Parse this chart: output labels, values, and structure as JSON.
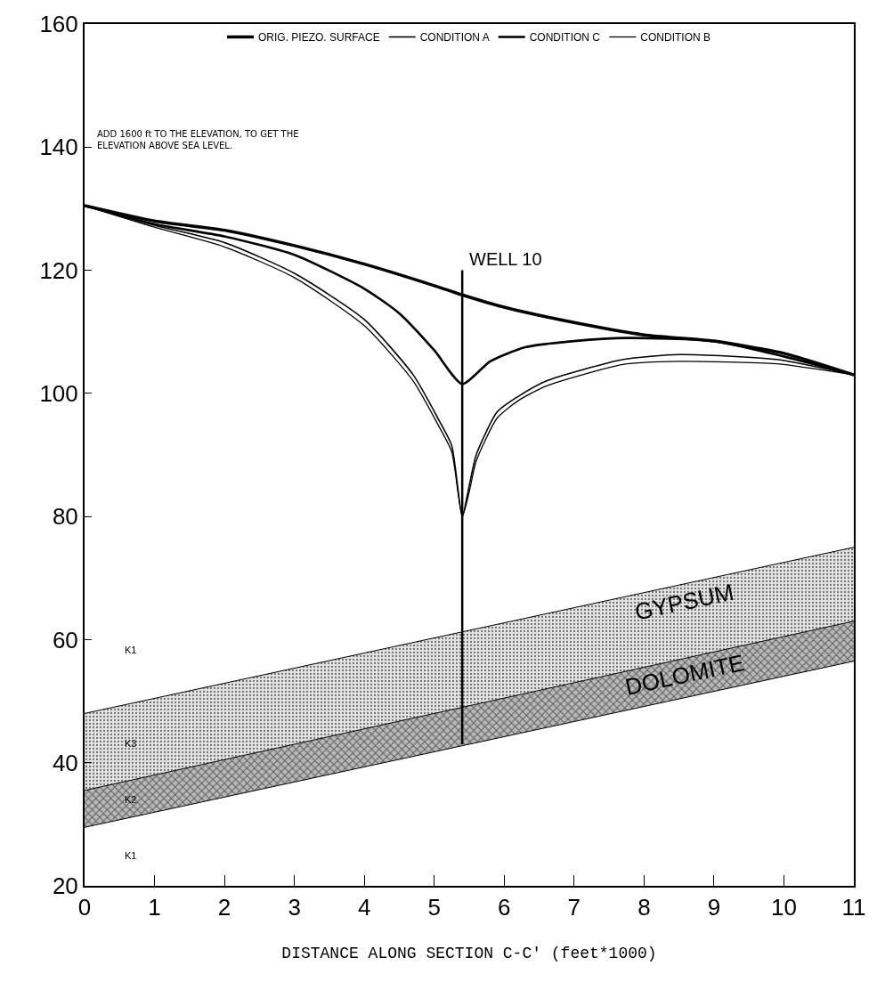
{
  "chart_data": {
    "type": "line",
    "xlabel": "DISTANCE ALONG SECTION C-C' (feet*1000)",
    "xlim": [
      0,
      11
    ],
    "xticks": [
      0,
      1,
      2,
      3,
      4,
      5,
      6,
      7,
      8,
      9,
      10,
      11
    ],
    "ylim": [
      20,
      160
    ],
    "yticks": [
      20,
      40,
      60,
      80,
      100,
      120,
      140,
      160
    ],
    "legend": "top",
    "marker": "none",
    "line_style": "solid",
    "series": [
      {
        "name": "ORIG. PIEZO. SURFACE",
        "color": "#000000",
        "x": [
          0,
          1,
          2,
          3,
          4,
          5,
          5.4,
          6,
          7,
          8,
          9,
          10,
          11
        ],
        "values": [
          130.5,
          128,
          126.5,
          124,
          121,
          117.5,
          116,
          114,
          111.5,
          109.5,
          108.5,
          106.5,
          103
        ]
      },
      {
        "name": "CONDITION A",
        "color": "#000000",
        "x": [
          0,
          1,
          2,
          3,
          4,
          4.7,
          5.05,
          5.25,
          5.4,
          5.5,
          5.6,
          5.9,
          6.2,
          6.6,
          7.7,
          8.5,
          9.9,
          11
        ],
        "values": [
          130.5,
          127.3,
          124.5,
          119.5,
          112,
          103,
          96,
          91.5,
          80,
          85,
          90,
          97,
          99.5,
          102,
          105.5,
          106.3,
          105.5,
          103
        ]
      },
      {
        "name": "CONDITION C",
        "color": "#000000",
        "x": [
          0,
          1,
          2,
          3,
          4,
          4.5,
          5,
          5.4,
          5.8,
          6.3,
          7,
          7.75,
          9,
          10,
          11
        ],
        "values": [
          130.5,
          127.5,
          125.5,
          122.5,
          117,
          113,
          107,
          101.5,
          105.2,
          107.5,
          108.5,
          109,
          108.5,
          106,
          103
        ]
      },
      {
        "name": "CONDITION B",
        "color": "#000000",
        "x": [
          0,
          1,
          2,
          3,
          4,
          4.7,
          5.05,
          5.25,
          5.4,
          5.5,
          5.6,
          5.9,
          6.2,
          6.6,
          7.7,
          8.5,
          9.9,
          11
        ],
        "values": [
          130.5,
          127,
          123.8,
          118.8,
          111,
          102,
          95,
          90.5,
          80,
          84,
          89,
          96,
          98.8,
          101.2,
          104.7,
          105.2,
          104.8,
          103
        ]
      },
      {
        "color": "#000000",
        "x": [
          0,
          11
        ],
        "values": [
          29.5,
          56.5
        ]
      },
      {
        "type": "area",
        "color": "#000000",
        "x": [
          0,
          11
        ],
        "values": [
          35.5,
          63
        ]
      },
      {
        "type": "area",
        "color": "#000000",
        "x": [
          0,
          11
        ],
        "values": [
          48,
          75
        ]
      },
      {
        "color": "#000000",
        "x": [
          5.4,
          5.4
        ],
        "values": [
          120,
          43
        ]
      }
    ],
    "annotations": [
      "ADD 1600 ft TO THE ELEVATION, TO GET THE\nELEVATION ABOVE SEA LEVEL.",
      {
        "text": "WELL 10",
        "x": 5.4,
        "y": 120
      },
      "GYPSUM",
      "DOLOMITE",
      "K1",
      "K3",
      "K2",
      "K1"
    ]
  }
}
